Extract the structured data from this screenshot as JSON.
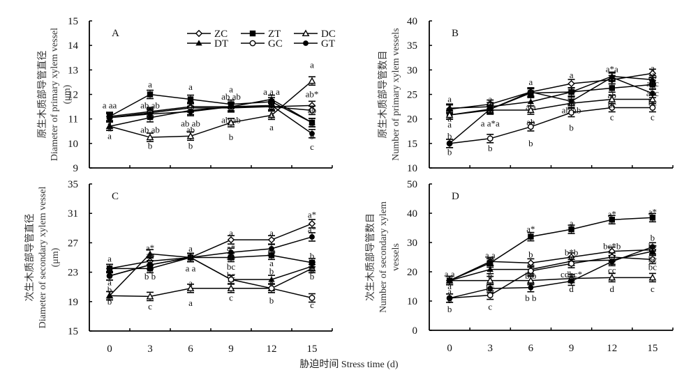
{
  "figure": {
    "xlabel": "胁迫时间 Stress time (d)"
  },
  "legend": [
    {
      "name": "ZC",
      "marker": "diamond-open"
    },
    {
      "name": "ZT",
      "marker": "square-filled"
    },
    {
      "name": "DC",
      "marker": "triangle-open"
    },
    {
      "name": "DT",
      "marker": "triangle-filled"
    },
    {
      "name": "GC",
      "marker": "circle-open"
    },
    {
      "name": "GT",
      "marker": "circle-filled"
    }
  ],
  "chart_data": [
    {
      "type": "line",
      "panel": "A",
      "title": "A",
      "xlabel": "Stress time (d)",
      "ylabel_cn": "原生木质部导管直径",
      "ylabel_en": "Diameter  of primary xylem vessel",
      "ylabel_unit": "(μm)",
      "x": [
        0,
        3,
        6,
        9,
        12,
        15
      ],
      "ylim": [
        9,
        15
      ],
      "yticks": [
        9,
        10,
        11,
        12,
        13,
        14,
        15
      ],
      "legend_position": "top-right",
      "series": [
        {
          "name": "ZC",
          "values": [
            11.1,
            11.3,
            11.5,
            11.5,
            11.5,
            11.55
          ]
        },
        {
          "name": "ZT",
          "values": [
            11.1,
            12.0,
            11.8,
            11.6,
            11.7,
            10.85
          ]
        },
        {
          "name": "DC",
          "values": [
            10.7,
            10.25,
            10.3,
            10.85,
            11.15,
            12.55
          ]
        },
        {
          "name": "DT",
          "values": [
            10.7,
            11.05,
            11.35,
            11.5,
            11.8,
            10.85
          ]
        },
        {
          "name": "GC",
          "values": [
            11.05,
            11.25,
            11.45,
            11.45,
            11.5,
            11.35
          ]
        },
        {
          "name": "GT",
          "values": [
            11.05,
            11.2,
            11.3,
            11.5,
            11.55,
            10.4
          ]
        }
      ],
      "annotations": [
        {
          "x": 0,
          "y": 11.55,
          "text": "a aa"
        },
        {
          "x": 0,
          "y": 10.85,
          "text": "a"
        },
        {
          "x": 0,
          "y": 10.6,
          "text": "a"
        },
        {
          "x": 0,
          "y": 10.3,
          "text": "a"
        },
        {
          "x": 3,
          "y": 12.4,
          "text": "a"
        },
        {
          "x": 3,
          "y": 11.55,
          "text": "ab   ab"
        },
        {
          "x": 3,
          "y": 10.55,
          "text": "ab ab"
        },
        {
          "x": 3,
          "y": 9.9,
          "text": "b"
        },
        {
          "x": 6,
          "y": 12.3,
          "text": "a"
        },
        {
          "x": 6,
          "y": 11.5,
          "text": "a"
        },
        {
          "x": 6,
          "y": 10.8,
          "text": "ab   ab"
        },
        {
          "x": 6,
          "y": 10.55,
          "text": "ab"
        },
        {
          "x": 6,
          "y": 9.9,
          "text": "b"
        },
        {
          "x": 9,
          "y": 12.2,
          "text": "a"
        },
        {
          "x": 9,
          "y": 11.9,
          "text": "ab ab"
        },
        {
          "x": 9,
          "y": 10.95,
          "text": "ab ab"
        },
        {
          "x": 9,
          "y": 10.25,
          "text": "b"
        },
        {
          "x": 12,
          "y": 12.1,
          "text": "a   a   a"
        },
        {
          "x": 12,
          "y": 11.65,
          "text": "a"
        },
        {
          "x": 12,
          "y": 11.2,
          "text": "a"
        },
        {
          "x": 12,
          "y": 10.65,
          "text": "a"
        },
        {
          "x": 15,
          "y": 13.2,
          "text": "a"
        },
        {
          "x": 15,
          "y": 12.0,
          "text": "ab*"
        },
        {
          "x": 15,
          "y": 11.35,
          "text": "ab"
        },
        {
          "x": 15,
          "y": 10.8,
          "text": "b"
        },
        {
          "x": 15,
          "y": 10.3,
          "text": "b"
        },
        {
          "x": 15,
          "y": 9.85,
          "text": "c"
        }
      ]
    },
    {
      "type": "line",
      "panel": "B",
      "title": "B",
      "xlabel": "Stress time (d)",
      "ylabel_cn": "原生木质部导管数目",
      "ylabel_en": "Number of primary xylem vessels",
      "ylabel_unit": "",
      "x": [
        0,
        3,
        6,
        9,
        12,
        15
      ],
      "ylim": [
        10,
        40
      ],
      "yticks": [
        10,
        15,
        20,
        25,
        30,
        35,
        40
      ],
      "series": [
        {
          "name": "ZC",
          "values": [
            22.0,
            23.0,
            25.5,
            27.2,
            28.0,
            29.3
          ]
        },
        {
          "name": "ZT",
          "values": [
            20.8,
            22.0,
            25.3,
            25.5,
            26.3,
            27.0
          ]
        },
        {
          "name": "DC",
          "values": [
            20.8,
            21.8,
            21.8,
            23.2,
            24.0,
            24.0
          ]
        },
        {
          "name": "DT",
          "values": [
            22.2,
            22.5,
            23.5,
            25.5,
            28.7,
            28.0
          ]
        },
        {
          "name": "GC",
          "values": [
            15.0,
            16.0,
            18.4,
            21.3,
            22.3,
            22.3
          ]
        },
        {
          "name": "GT",
          "values": [
            15.0,
            22.0,
            25.5,
            23.6,
            28.5,
            25.2
          ]
        }
      ],
      "annotations": [
        {
          "x": 0,
          "y": 24.0,
          "text": "a"
        },
        {
          "x": 0,
          "y": 22.6,
          "text": "a"
        },
        {
          "x": 0,
          "y": 20.0,
          "text": "a"
        },
        {
          "x": 0,
          "y": 18.8,
          "text": "a"
        },
        {
          "x": 0,
          "y": 16.5,
          "text": "b"
        },
        {
          "x": 0,
          "y": 13.2,
          "text": "b"
        },
        {
          "x": 3,
          "y": 24.0,
          "text": "a"
        },
        {
          "x": 3,
          "y": 23.1,
          "text": "a"
        },
        {
          "x": 3,
          "y": 19.0,
          "text": "a   a*a"
        },
        {
          "x": 3,
          "y": 14.0,
          "text": "b"
        },
        {
          "x": 6,
          "y": 27.5,
          "text": "a"
        },
        {
          "x": 6,
          "y": 25.8,
          "text": "a"
        },
        {
          "x": 6,
          "y": 22.4,
          "text": "a    a"
        },
        {
          "x": 6,
          "y": 19.3,
          "text": "ab"
        },
        {
          "x": 6,
          "y": 15.0,
          "text": "b"
        },
        {
          "x": 9,
          "y": 28.9,
          "text": "a"
        },
        {
          "x": 9,
          "y": 25.8,
          "text": "ab"
        },
        {
          "x": 9,
          "y": 23.4,
          "text": "ab"
        },
        {
          "x": 9,
          "y": 21.7,
          "text": "ab ab"
        },
        {
          "x": 9,
          "y": 18.2,
          "text": "b"
        },
        {
          "x": 12,
          "y": 30.1,
          "text": "a*a"
        },
        {
          "x": 12,
          "y": 26.4,
          "text": "a"
        },
        {
          "x": 12,
          "y": 24.8,
          "text": "ab"
        },
        {
          "x": 12,
          "y": 22.8,
          "text": "bc"
        },
        {
          "x": 12,
          "y": 20.3,
          "text": "c"
        },
        {
          "x": 15,
          "y": 30.3,
          "text": "a"
        },
        {
          "x": 15,
          "y": 28.7,
          "text": "ab"
        },
        {
          "x": 15,
          "y": 27.2,
          "text": "abc"
        },
        {
          "x": 15,
          "y": 25.2,
          "text": "abc"
        },
        {
          "x": 15,
          "y": 23.3,
          "text": "bc"
        },
        {
          "x": 15,
          "y": 20.3,
          "text": "c"
        }
      ]
    },
    {
      "type": "line",
      "panel": "C",
      "title": "C",
      "xlabel": "Stress time (d)",
      "ylabel_cn": "次生木质部导管直径",
      "ylabel_en": "Diameter of secondary xylem vessel",
      "ylabel_unit": "(μm)",
      "x": [
        0,
        3,
        6,
        9,
        12,
        15
      ],
      "ylim": [
        15,
        35
      ],
      "yticks": [
        15,
        19,
        23,
        27,
        31,
        35
      ],
      "series": [
        {
          "name": "ZC",
          "values": [
            23.5,
            24.5,
            25.0,
            27.4,
            27.4,
            29.6
          ]
        },
        {
          "name": "ZT",
          "values": [
            23.5,
            23.5,
            25.0,
            25.0,
            25.3,
            24.3
          ]
        },
        {
          "name": "DC",
          "values": [
            19.8,
            19.7,
            20.8,
            20.8,
            20.8,
            23.5
          ]
        },
        {
          "name": "DT",
          "values": [
            19.8,
            25.5,
            25.0,
            22.0,
            22.0,
            23.8
          ]
        },
        {
          "name": "GC",
          "values": [
            22.5,
            24.0,
            25.0,
            22.0,
            20.8,
            19.5
          ]
        },
        {
          "name": "GT",
          "values": [
            22.5,
            24.0,
            25.0,
            25.7,
            26.2,
            27.8
          ]
        }
      ],
      "annotations": [
        {
          "x": 0,
          "y": 24.8,
          "text": "a"
        },
        {
          "x": 0,
          "y": 23.5,
          "text": "a"
        },
        {
          "x": 0,
          "y": 22.5,
          "text": "a"
        },
        {
          "x": 0,
          "y": 21.6,
          "text": "a"
        },
        {
          "x": 0,
          "y": 20.6,
          "text": "b"
        },
        {
          "x": 0,
          "y": 19.0,
          "text": "b"
        },
        {
          "x": 3,
          "y": 26.3,
          "text": "a*"
        },
        {
          "x": 3,
          "y": 25.3,
          "text": "ab"
        },
        {
          "x": 3,
          "y": 22.4,
          "text": "b  b"
        },
        {
          "x": 3,
          "y": 18.3,
          "text": "c"
        },
        {
          "x": 6,
          "y": 26.2,
          "text": "a"
        },
        {
          "x": 6,
          "y": 25.3,
          "text": "a"
        },
        {
          "x": 6,
          "y": 23.5,
          "text": "a   a"
        },
        {
          "x": 6,
          "y": 21.5,
          "text": "a"
        },
        {
          "x": 6,
          "y": 18.8,
          "text": "a"
        },
        {
          "x": 9,
          "y": 28.3,
          "text": "a"
        },
        {
          "x": 9,
          "y": 26.3,
          "text": "a*"
        },
        {
          "x": 9,
          "y": 25.0,
          "text": "ab"
        },
        {
          "x": 9,
          "y": 23.7,
          "text": "bc"
        },
        {
          "x": 9,
          "y": 22.6,
          "text": "bc"
        },
        {
          "x": 9,
          "y": 19.5,
          "text": "c"
        },
        {
          "x": 12,
          "y": 28.3,
          "text": "a"
        },
        {
          "x": 12,
          "y": 25.5,
          "text": "a*"
        },
        {
          "x": 12,
          "y": 24.2,
          "text": "a"
        },
        {
          "x": 12,
          "y": 23.1,
          "text": "b"
        },
        {
          "x": 12,
          "y": 21.5,
          "text": "b"
        },
        {
          "x": 12,
          "y": 19.1,
          "text": "b"
        },
        {
          "x": 15,
          "y": 30.8,
          "text": "a*"
        },
        {
          "x": 15,
          "y": 28.8,
          "text": "a*"
        },
        {
          "x": 15,
          "y": 25.2,
          "text": "b"
        },
        {
          "x": 15,
          "y": 23.2,
          "text": "b"
        },
        {
          "x": 15,
          "y": 22.4,
          "text": "b"
        },
        {
          "x": 15,
          "y": 18.5,
          "text": "c"
        }
      ]
    },
    {
      "type": "line",
      "panel": "D",
      "title": "D",
      "xlabel": "Stress time (d)",
      "ylabel_cn": "次生木质部导管数目",
      "ylabel_en": "Number of secondary xylem",
      "ylabel_unit": "vessels",
      "x": [
        0,
        3,
        6,
        9,
        12,
        15
      ],
      "xticklabels": [
        "0",
        "3",
        "6",
        "9",
        "12",
        "15"
      ],
      "ylim": [
        0,
        50
      ],
      "yticks": [
        0,
        10,
        20,
        30,
        40,
        50
      ],
      "series": [
        {
          "name": "ZC",
          "values": [
            17.0,
            23.5,
            23.0,
            25.0,
            27.0,
            27.5
          ]
        },
        {
          "name": "ZT",
          "values": [
            17.0,
            23.0,
            32.0,
            34.5,
            37.8,
            38.5
          ]
        },
        {
          "name": "DC",
          "values": [
            17.0,
            17.0,
            17.0,
            17.7,
            18.0,
            18.0
          ]
        },
        {
          "name": "DT",
          "values": [
            17.0,
            20.8,
            20.8,
            23.6,
            24.0,
            27.0
          ]
        },
        {
          "name": "GC",
          "values": [
            11.0,
            12.0,
            20.3,
            22.8,
            25.0,
            24.2
          ]
        },
        {
          "name": "GT",
          "values": [
            11.0,
            14.3,
            14.6,
            16.8,
            23.5,
            28.5
          ]
        }
      ],
      "annotations": [
        {
          "x": 0,
          "y": 19.2,
          "text": "a a"
        },
        {
          "x": 0,
          "y": 15.0,
          "text": "a"
        },
        {
          "x": 0,
          "y": 13.2,
          "text": "a"
        },
        {
          "x": 0,
          "y": 10.2,
          "text": "b"
        },
        {
          "x": 0,
          "y": 7.2,
          "text": "b"
        },
        {
          "x": 3,
          "y": 25.6,
          "text": "a  a"
        },
        {
          "x": 3,
          "y": 23.4,
          "text": "a*"
        },
        {
          "x": 3,
          "y": 18.6,
          "text": "b"
        },
        {
          "x": 3,
          "y": 14.4,
          "text": "bc"
        },
        {
          "x": 3,
          "y": 8.0,
          "text": "c"
        },
        {
          "x": 6,
          "y": 34.5,
          "text": "a*"
        },
        {
          "x": 6,
          "y": 25.8,
          "text": "b"
        },
        {
          "x": 6,
          "y": 18.6,
          "text": "b   b"
        },
        {
          "x": 6,
          "y": 11.0,
          "text": "b   b"
        },
        {
          "x": 9,
          "y": 36.5,
          "text": "a"
        },
        {
          "x": 9,
          "y": 26.5,
          "text": "b*b"
        },
        {
          "x": 9,
          "y": 19.0,
          "text": "cdbc*"
        },
        {
          "x": 9,
          "y": 14.0,
          "text": "d"
        },
        {
          "x": 12,
          "y": 39.6,
          "text": "a*"
        },
        {
          "x": 12,
          "y": 28.7,
          "text": "bc*b"
        },
        {
          "x": 12,
          "y": 20.5,
          "text": "cc"
        },
        {
          "x": 12,
          "y": 14.0,
          "text": "d"
        },
        {
          "x": 15,
          "y": 40.3,
          "text": "a*"
        },
        {
          "x": 15,
          "y": 31.5,
          "text": "b"
        },
        {
          "x": 15,
          "y": 28.6,
          "text": "bc"
        },
        {
          "x": 15,
          "y": 24.2,
          "text": "bc"
        },
        {
          "x": 15,
          "y": 21.5,
          "text": "bc"
        },
        {
          "x": 15,
          "y": 14.0,
          "text": "c"
        }
      ]
    }
  ]
}
